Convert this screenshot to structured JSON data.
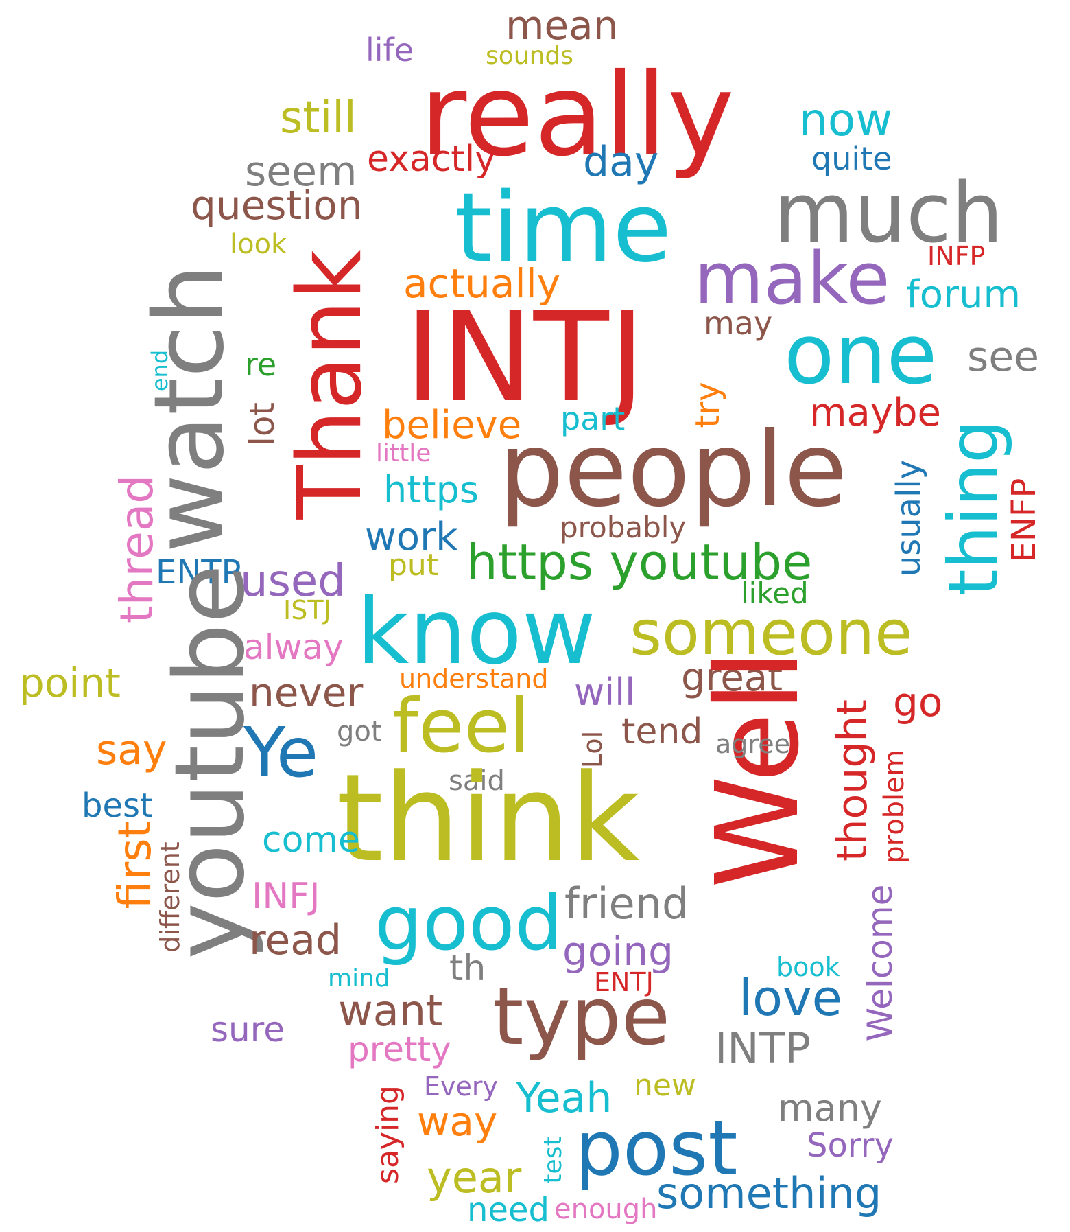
{
  "palette": {
    "red": "#d62728",
    "brown": "#8c564b",
    "gray": "#7f7f7f",
    "olive": "#bcbd22",
    "cyan": "#17becf",
    "blue": "#1f77b4",
    "purple": "#9467bd",
    "orange": "#ff7f0e",
    "green": "#2ca02c",
    "pink": "#e377c2"
  },
  "words": [
    {
      "text": "mean",
      "color": "#8c564b"
    },
    {
      "text": "life",
      "color": "#9467bd"
    },
    {
      "text": "sounds",
      "color": "#bcbd22"
    },
    {
      "text": "really",
      "color": "#d62728"
    },
    {
      "text": "still",
      "color": "#bcbd22"
    },
    {
      "text": "now",
      "color": "#17becf"
    },
    {
      "text": "exactly",
      "color": "#d62728"
    },
    {
      "text": "day",
      "color": "#1f77b4"
    },
    {
      "text": "quite",
      "color": "#1f77b4"
    },
    {
      "text": "seem",
      "color": "#7f7f7f"
    },
    {
      "text": "question",
      "color": "#8c564b"
    },
    {
      "text": "time",
      "color": "#17becf"
    },
    {
      "text": "much",
      "color": "#7f7f7f"
    },
    {
      "text": "look",
      "color": "#bcbd22"
    },
    {
      "text": "INFP",
      "color": "#d62728"
    },
    {
      "text": "actually",
      "color": "#ff7f0e"
    },
    {
      "text": "make",
      "color": "#9467bd"
    },
    {
      "text": "forum",
      "color": "#17becf"
    },
    {
      "text": "may",
      "color": "#8c564b"
    },
    {
      "text": "watch",
      "color": "#7f7f7f"
    },
    {
      "text": "Thank",
      "color": "#d62728"
    },
    {
      "text": "INTJ",
      "color": "#d62728"
    },
    {
      "text": "one",
      "color": "#17becf"
    },
    {
      "text": "see",
      "color": "#7f7f7f"
    },
    {
      "text": "end",
      "color": "#17becf"
    },
    {
      "text": "re",
      "color": "#2ca02c"
    },
    {
      "text": "lot",
      "color": "#8c564b"
    },
    {
      "text": "try",
      "color": "#ff7f0e"
    },
    {
      "text": "maybe",
      "color": "#d62728"
    },
    {
      "text": "believe",
      "color": "#ff7f0e"
    },
    {
      "text": "part",
      "color": "#17becf"
    },
    {
      "text": "thing",
      "color": "#17becf"
    },
    {
      "text": "little",
      "color": "#e377c2"
    },
    {
      "text": "people",
      "color": "#8c564b"
    },
    {
      "text": "thread",
      "color": "#e377c2"
    },
    {
      "text": "https",
      "color": "#17becf"
    },
    {
      "text": "usually",
      "color": "#1f77b4"
    },
    {
      "text": "ENFP",
      "color": "#d62728"
    },
    {
      "text": "probably",
      "color": "#8c564b"
    },
    {
      "text": "work",
      "color": "#1f77b4"
    },
    {
      "text": "https youtube",
      "color": "#2ca02c"
    },
    {
      "text": "put",
      "color": "#bcbd22"
    },
    {
      "text": "ENTP",
      "color": "#1f77b4"
    },
    {
      "text": "used",
      "color": "#9467bd"
    },
    {
      "text": "liked",
      "color": "#2ca02c"
    },
    {
      "text": "ISTJ",
      "color": "#bcbd22"
    },
    {
      "text": "know",
      "color": "#17becf"
    },
    {
      "text": "someone",
      "color": "#bcbd22"
    },
    {
      "text": "alway",
      "color": "#e377c2"
    },
    {
      "text": "point",
      "color": "#bcbd22"
    },
    {
      "text": "understand",
      "color": "#ff7f0e"
    },
    {
      "text": "great",
      "color": "#8c564b"
    },
    {
      "text": "never",
      "color": "#8c564b"
    },
    {
      "text": "will",
      "color": "#9467bd"
    },
    {
      "text": "go",
      "color": "#d62728"
    },
    {
      "text": "youtube",
      "color": "#7f7f7f"
    },
    {
      "text": "feel",
      "color": "#bcbd22"
    },
    {
      "text": "Well",
      "color": "#d62728"
    },
    {
      "text": "thought",
      "color": "#d62728"
    },
    {
      "text": "say",
      "color": "#ff7f0e"
    },
    {
      "text": "Ye",
      "color": "#1f77b4"
    },
    {
      "text": "got",
      "color": "#7f7f7f"
    },
    {
      "text": "tend",
      "color": "#8c564b"
    },
    {
      "text": "agree",
      "color": "#7f7f7f"
    },
    {
      "text": "Lol",
      "color": "#8c564b"
    },
    {
      "text": "problem",
      "color": "#d62728"
    },
    {
      "text": "said",
      "color": "#7f7f7f"
    },
    {
      "text": "best",
      "color": "#1f77b4"
    },
    {
      "text": "think",
      "color": "#bcbd22"
    },
    {
      "text": "come",
      "color": "#17becf"
    },
    {
      "text": "first",
      "color": "#ff7f0e"
    },
    {
      "text": "different",
      "color": "#8c564b"
    },
    {
      "text": "INFJ",
      "color": "#e377c2"
    },
    {
      "text": "good",
      "color": "#17becf"
    },
    {
      "text": "friend",
      "color": "#7f7f7f"
    },
    {
      "text": "read",
      "color": "#8c564b"
    },
    {
      "text": "going",
      "color": "#9467bd"
    },
    {
      "text": "Welcome",
      "color": "#9467bd"
    },
    {
      "text": "th",
      "color": "#7f7f7f"
    },
    {
      "text": "book",
      "color": "#17becf"
    },
    {
      "text": "mind",
      "color": "#17becf"
    },
    {
      "text": "ENTJ",
      "color": "#d62728"
    },
    {
      "text": "love",
      "color": "#1f77b4"
    },
    {
      "text": "want",
      "color": "#8c564b"
    },
    {
      "text": "type",
      "color": "#8c564b"
    },
    {
      "text": "sure",
      "color": "#9467bd"
    },
    {
      "text": "INTP",
      "color": "#7f7f7f"
    },
    {
      "text": "pretty",
      "color": "#e377c2"
    },
    {
      "text": "saying",
      "color": "#d62728"
    },
    {
      "text": "Every",
      "color": "#9467bd"
    },
    {
      "text": "new",
      "color": "#bcbd22"
    },
    {
      "text": "Yeah",
      "color": "#17becf"
    },
    {
      "text": "way",
      "color": "#ff7f0e"
    },
    {
      "text": "many",
      "color": "#7f7f7f"
    },
    {
      "text": "test",
      "color": "#17becf"
    },
    {
      "text": "post",
      "color": "#1f77b4"
    },
    {
      "text": "Sorry",
      "color": "#9467bd"
    },
    {
      "text": "year",
      "color": "#bcbd22"
    },
    {
      "text": "something",
      "color": "#1f77b4"
    },
    {
      "text": "need",
      "color": "#17becf"
    },
    {
      "text": "enough",
      "color": "#e377c2"
    }
  ]
}
